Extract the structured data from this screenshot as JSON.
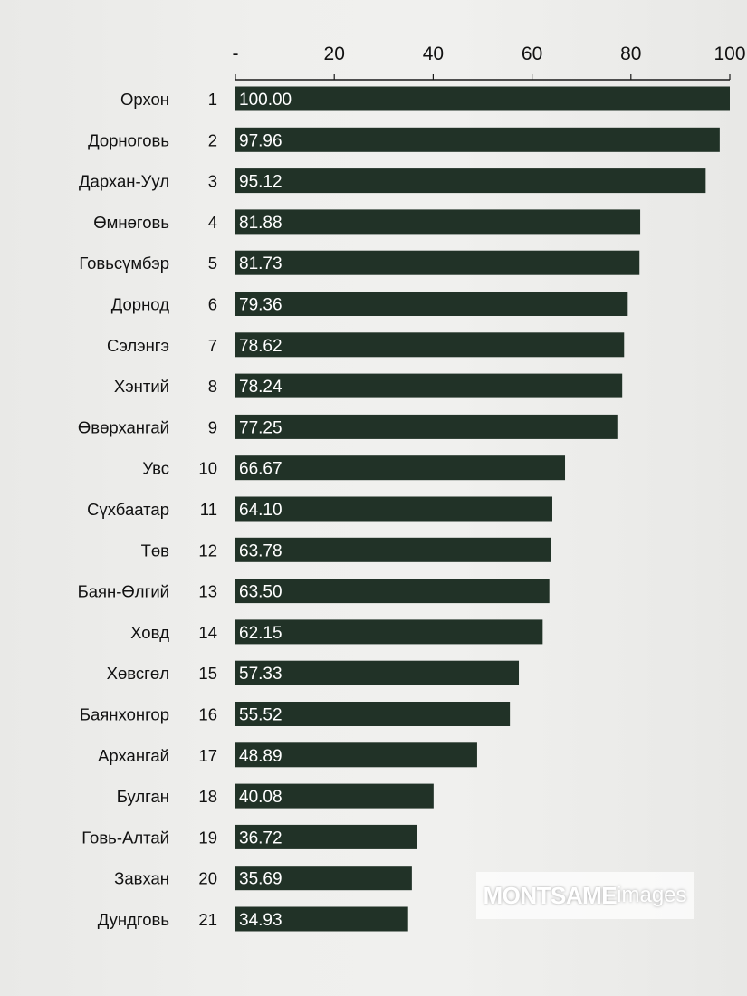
{
  "chart_data": {
    "type": "bar",
    "orientation": "horizontal",
    "title": "",
    "xlabel": "",
    "ylabel": "",
    "xlim": [
      0,
      100
    ],
    "x_ticks": [
      "-",
      "20",
      "40",
      "60",
      "80",
      "100"
    ],
    "grid": false,
    "legend": "none",
    "bar_color": "#213227",
    "label_color": "#ffffff",
    "categories": [
      {
        "name": "Орхон",
        "rank": "1",
        "value": 100.0,
        "label": "100.00"
      },
      {
        "name": "Дорноговь",
        "rank": "2",
        "value": 97.96,
        "label": "97.96"
      },
      {
        "name": "Дархан-Уул",
        "rank": "3",
        "value": 95.12,
        "label": "95.12"
      },
      {
        "name": "Өмнөговь",
        "rank": "4",
        "value": 81.88,
        "label": "81.88"
      },
      {
        "name": "Говьсүмбэр",
        "rank": "5",
        "value": 81.73,
        "label": "81.73"
      },
      {
        "name": "Дорнод",
        "rank": "6",
        "value": 79.36,
        "label": "79.36"
      },
      {
        "name": "Сэлэнгэ",
        "rank": "7",
        "value": 78.62,
        "label": "78.62"
      },
      {
        "name": "Хэнтий",
        "rank": "8",
        "value": 78.24,
        "label": "78.24"
      },
      {
        "name": "Өвөрхангай",
        "rank": "9",
        "value": 77.25,
        "label": "77.25"
      },
      {
        "name": "Увс",
        "rank": "10",
        "value": 66.67,
        "label": "66.67"
      },
      {
        "name": "Сүхбаатар",
        "rank": "11",
        "value": 64.1,
        "label": "64.10"
      },
      {
        "name": "Төв",
        "rank": "12",
        "value": 63.78,
        "label": "63.78"
      },
      {
        "name": "Баян-Өлгий",
        "rank": "13",
        "value": 63.5,
        "label": "63.50"
      },
      {
        "name": "Ховд",
        "rank": "14",
        "value": 62.15,
        "label": "62.15"
      },
      {
        "name": "Хөвсгөл",
        "rank": "15",
        "value": 57.33,
        "label": "57.33"
      },
      {
        "name": "Баянхонгор",
        "rank": "16",
        "value": 55.52,
        "label": "55.52"
      },
      {
        "name": "Архангай",
        "rank": "17",
        "value": 48.89,
        "label": "48.89"
      },
      {
        "name": "Булган",
        "rank": "18",
        "value": 40.08,
        "label": "40.08"
      },
      {
        "name": "Говь-Алтай",
        "rank": "19",
        "value": 36.72,
        "label": "36.72"
      },
      {
        "name": "Завхан",
        "rank": "20",
        "value": 35.69,
        "label": "35.69"
      },
      {
        "name": "Дундговь",
        "rank": "21",
        "value": 34.93,
        "label": "34.93"
      }
    ]
  },
  "watermark": {
    "bold": "MONTSAME",
    "light": "images"
  }
}
